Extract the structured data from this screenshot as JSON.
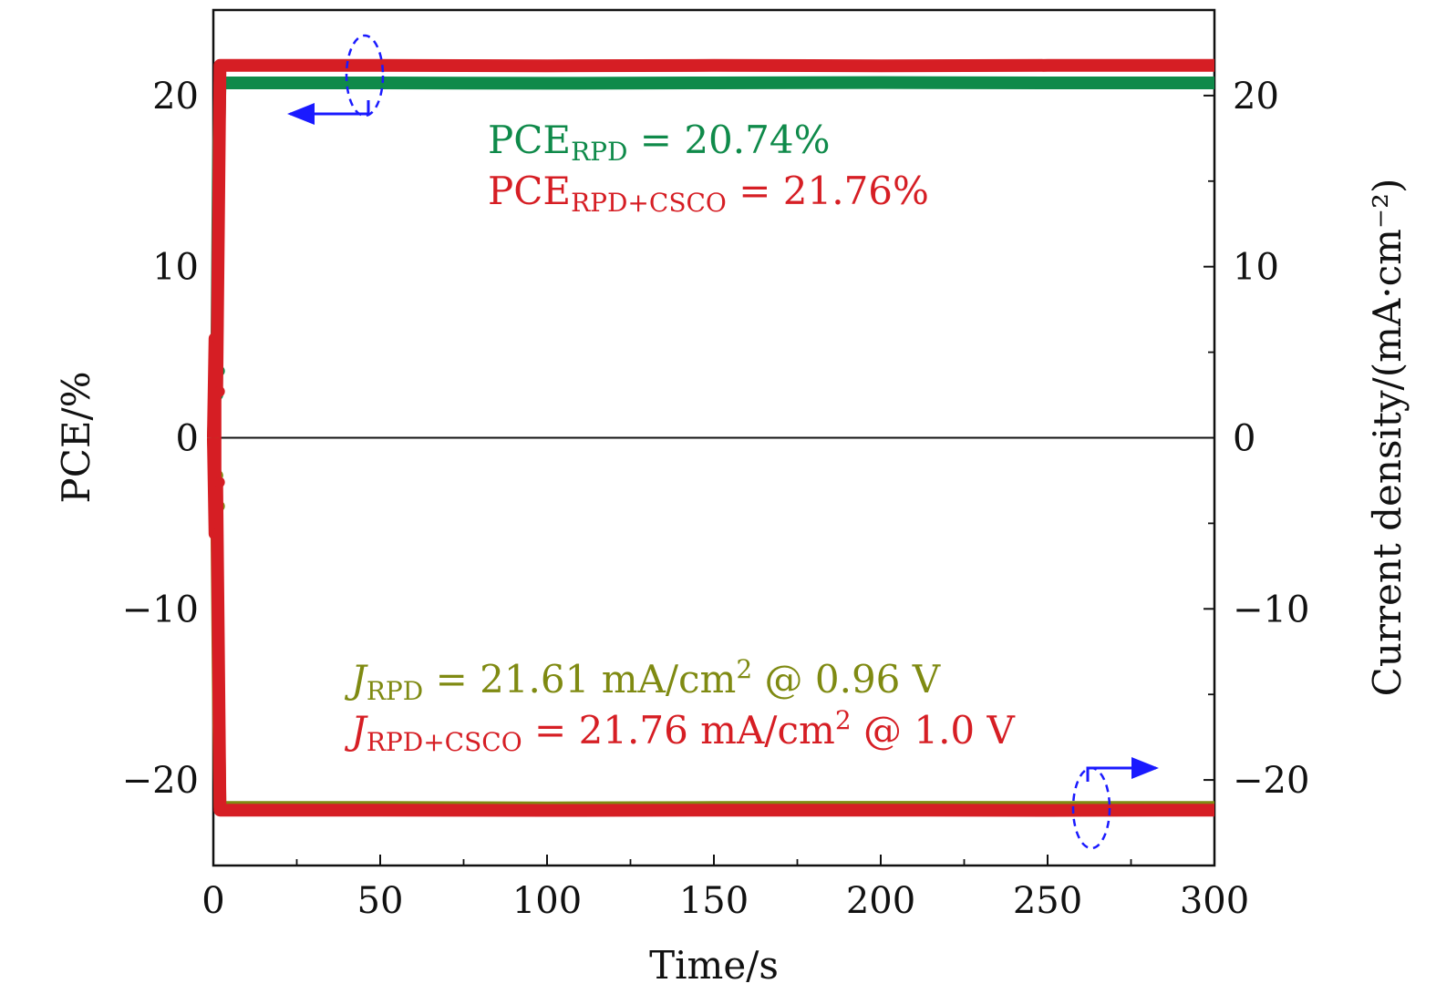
{
  "chart_data": {
    "type": "line",
    "title": "",
    "xlabel": "Time/s",
    "ylabel_left": "PCE/%",
    "ylabel_right": "Current density/(mA·cm⁻²)",
    "xlim": [
      0,
      300
    ],
    "ylim": [
      -25,
      25
    ],
    "x_ticks": [
      "0",
      "50",
      "100",
      "150",
      "200",
      "250",
      "300"
    ],
    "y_ticks": [
      "−20",
      "−10",
      "0",
      "10",
      "20"
    ],
    "y_tick_values": [
      -20,
      -10,
      0,
      10,
      20
    ],
    "x_tick_values": [
      0,
      50,
      100,
      150,
      200,
      250,
      300
    ],
    "grid": false,
    "series": [
      {
        "name": "PCE_RPD",
        "color": "#0f8a4a",
        "axis": "left",
        "x": [
          0,
          0.5,
          1,
          1.5,
          2,
          5,
          50,
          100,
          150,
          200,
          250,
          300
        ],
        "y": [
          0,
          2.5,
          3.9,
          16,
          20.74,
          20.74,
          20.74,
          20.72,
          20.74,
          20.76,
          20.74,
          20.74
        ]
      },
      {
        "name": "PCE_RPD+CSCO",
        "color": "#d61e24",
        "axis": "left",
        "x": [
          0,
          0.5,
          1,
          1.5,
          2,
          5,
          50,
          100,
          150,
          200,
          250,
          300
        ],
        "y": [
          0,
          5.8,
          2.7,
          12,
          21.76,
          21.76,
          21.76,
          21.74,
          21.76,
          21.74,
          21.76,
          21.76
        ]
      },
      {
        "name": "J_RPD",
        "color": "#7f8a12",
        "axis": "right",
        "x": [
          0,
          0.5,
          1,
          1.5,
          2,
          5,
          50,
          100,
          150,
          200,
          250,
          300
        ],
        "y": [
          0,
          -2.2,
          -4.0,
          -15,
          -21.61,
          -21.61,
          -21.61,
          -21.63,
          -21.61,
          -21.6,
          -21.61,
          -21.61
        ]
      },
      {
        "name": "J_RPD+CSCO",
        "color": "#d61e24",
        "axis": "right",
        "x": [
          0,
          0.5,
          1,
          1.5,
          2,
          5,
          50,
          100,
          150,
          200,
          250,
          300
        ],
        "y": [
          0,
          -5.6,
          -2.6,
          -12,
          -21.76,
          -21.76,
          -21.76,
          -21.78,
          -21.76,
          -21.76,
          -21.78,
          -21.76
        ]
      }
    ],
    "annotations": {
      "pce_rpd": {
        "prefix": "PCE",
        "sub": "RPD",
        "value": " = 20.74%",
        "color": "#0f8a4a"
      },
      "pce_csco": {
        "prefix": "PCE",
        "sub": "RPD+CSCO",
        "value": " = 21.76%",
        "color": "#d61e24"
      },
      "j_rpd": {
        "prefix": "J",
        "sub": "RPD",
        "value": " = 21.61 mA/cm",
        "sup": "2",
        "tail": " @ 0.96 V",
        "color": "#7f8a12"
      },
      "j_csco": {
        "prefix": "J",
        "sub": "RPD+CSCO",
        "value": " = 21.76 mA/cm",
        "sup": "2",
        "tail": " @ 1.0 V",
        "color": "#d61e24"
      }
    },
    "axis_indicator_color": "#1a1aff"
  }
}
